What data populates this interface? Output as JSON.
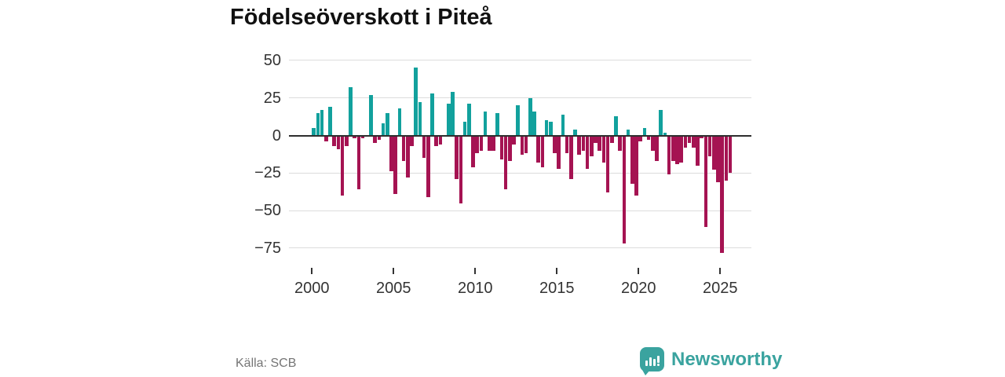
{
  "title": "Födelseöverskott i Piteå",
  "source": "Källa: SCB",
  "logo": {
    "text": "Newsworthy",
    "icon": "newsworthy-bar-chart-bubble-icon",
    "color": "#3aa39f"
  },
  "colors": {
    "positive": "#12a19d",
    "negative": "#a51352",
    "grid": "#dcdcdc",
    "axis": "#2e2e2e"
  },
  "chart_data": {
    "type": "bar",
    "title": "Födelseöverskott i Piteå",
    "xlabel": "",
    "ylabel": "",
    "ylim": [
      -85,
      55
    ],
    "yticks": [
      50,
      25,
      0,
      -25,
      -50,
      -75
    ],
    "ytick_labels": [
      "50",
      "25",
      "0",
      "−25",
      "−50",
      "−75"
    ],
    "xticks": [
      "2000",
      "2005",
      "2010",
      "2015",
      "2020",
      "2025"
    ],
    "grid": true,
    "legend": "none",
    "series_note": "quarterly birth surplus (births minus deaths), 2000Q1 to 2025Q3; teal = positive, crimson = negative",
    "x": [
      "2000Q1",
      "2000Q2",
      "2000Q3",
      "2000Q4",
      "2001Q1",
      "2001Q2",
      "2001Q3",
      "2001Q4",
      "2002Q1",
      "2002Q2",
      "2002Q3",
      "2002Q4",
      "2003Q1",
      "2003Q2",
      "2003Q3",
      "2003Q4",
      "2004Q1",
      "2004Q2",
      "2004Q3",
      "2004Q4",
      "2005Q1",
      "2005Q2",
      "2005Q3",
      "2005Q4",
      "2006Q1",
      "2006Q2",
      "2006Q3",
      "2006Q4",
      "2007Q1",
      "2007Q2",
      "2007Q3",
      "2007Q4",
      "2008Q1",
      "2008Q2",
      "2008Q3",
      "2008Q4",
      "2009Q1",
      "2009Q2",
      "2009Q3",
      "2009Q4",
      "2010Q1",
      "2010Q2",
      "2010Q3",
      "2010Q4",
      "2011Q1",
      "2011Q2",
      "2011Q3",
      "2011Q4",
      "2012Q1",
      "2012Q2",
      "2012Q3",
      "2012Q4",
      "2013Q1",
      "2013Q2",
      "2013Q3",
      "2013Q4",
      "2014Q1",
      "2014Q2",
      "2014Q3",
      "2014Q4",
      "2015Q1",
      "2015Q2",
      "2015Q3",
      "2015Q4",
      "2016Q1",
      "2016Q2",
      "2016Q3",
      "2016Q4",
      "2017Q1",
      "2017Q2",
      "2017Q3",
      "2017Q4",
      "2018Q1",
      "2018Q2",
      "2018Q3",
      "2018Q4",
      "2019Q1",
      "2019Q2",
      "2019Q3",
      "2019Q4",
      "2020Q1",
      "2020Q2",
      "2020Q3",
      "2020Q4",
      "2021Q1",
      "2021Q2",
      "2021Q3",
      "2021Q4",
      "2022Q1",
      "2022Q2",
      "2022Q3",
      "2022Q4",
      "2023Q1",
      "2023Q2",
      "2023Q3",
      "2023Q4",
      "2024Q1",
      "2024Q2",
      "2024Q3",
      "2024Q4",
      "2025Q1",
      "2025Q2",
      "2025Q3"
    ],
    "values": [
      5,
      15,
      17,
      -4,
      19,
      -7,
      -9,
      -40,
      -7,
      32,
      -2,
      -36,
      -2,
      0,
      27,
      -5,
      -3,
      8,
      15,
      -24,
      -39,
      18,
      -17,
      -28,
      -7,
      45,
      22,
      -15,
      -41,
      28,
      -7,
      -6,
      0,
      21,
      29,
      -29,
      -45,
      9,
      21,
      -21,
      -12,
      -10,
      16,
      -10,
      -10,
      15,
      -16,
      -36,
      -17,
      -6,
      20,
      -13,
      -12,
      25,
      16,
      -18,
      -21,
      10,
      9,
      -12,
      -22,
      14,
      -12,
      -29,
      4,
      -13,
      -10,
      -22,
      -14,
      -5,
      -10,
      -18,
      -38,
      -5,
      13,
      -10,
      -72,
      4,
      -32,
      -40,
      -4,
      5,
      -3,
      -10,
      -17,
      17,
      2,
      -26,
      -17,
      -19,
      -18,
      -8,
      -5,
      -8,
      -20,
      -2,
      -61,
      -14,
      -23,
      -31,
      -78,
      -30,
      -25
    ]
  }
}
